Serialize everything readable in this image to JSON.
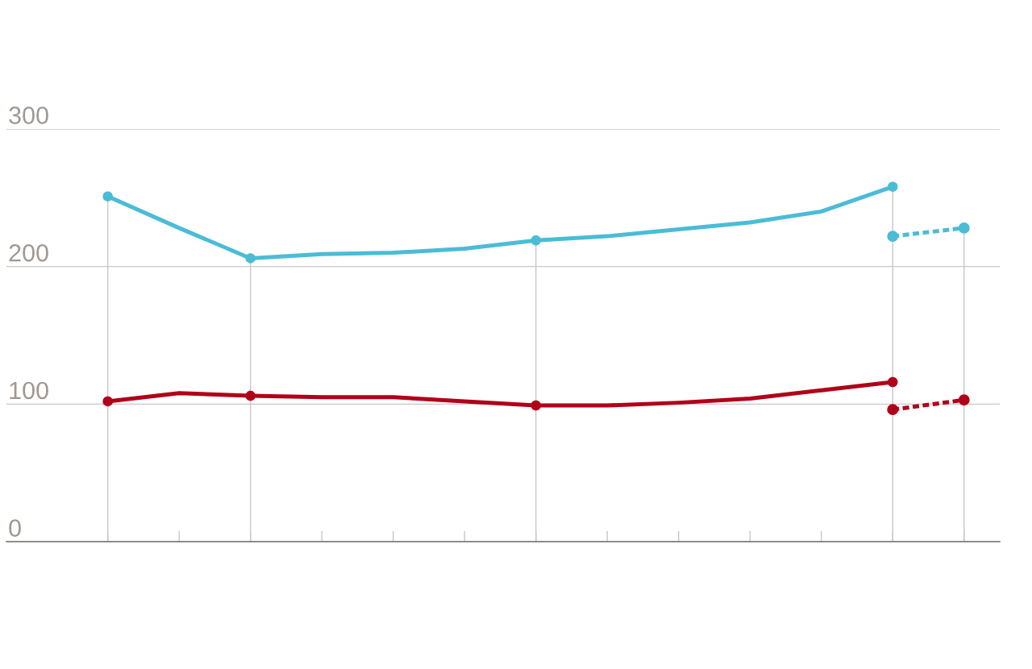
{
  "chart_data": {
    "type": "line",
    "categories": [
      null,
      null,
      null,
      null,
      null,
      null,
      null,
      null,
      null,
      null,
      null,
      null,
      null
    ],
    "series": [
      {
        "color": "#4bbcd6",
        "values": [
          251,
          228,
          206,
          209,
          210,
          213,
          219,
          222,
          227,
          232,
          240,
          258,
          null
        ]
      },
      {
        "color": "#b10019",
        "values": [
          102,
          108,
          106,
          105,
          105,
          102,
          99,
          99,
          101,
          104,
          110,
          116,
          null
        ]
      },
      {
        "color": "#4bbcd6",
        "line_style": "dashed",
        "marker": "circle",
        "values": [
          null,
          null,
          null,
          null,
          null,
          null,
          null,
          null,
          null,
          null,
          null,
          222,
          228
        ]
      },
      {
        "color": "#b10019",
        "line_style": "dashed",
        "marker": "circle",
        "values": [
          null,
          null,
          null,
          null,
          null,
          null,
          null,
          null,
          null,
          null,
          null,
          96,
          103
        ]
      },
      {
        "type": "scatter",
        "color": "#4bbcd6",
        "marker": "circle",
        "values": [
          251,
          null,
          206,
          null,
          null,
          null,
          219,
          null,
          null,
          null,
          null,
          258,
          null
        ]
      },
      {
        "type": "scatter",
        "color": "#b10019",
        "marker": "circle",
        "values": [
          102,
          null,
          106,
          null,
          null,
          null,
          99,
          null,
          null,
          null,
          null,
          116,
          null
        ]
      }
    ],
    "ylim": [
      0,
      300
    ],
    "yticks": [
      0,
      100,
      200,
      300
    ],
    "grid": true,
    "tick_labels": "y"
  }
}
